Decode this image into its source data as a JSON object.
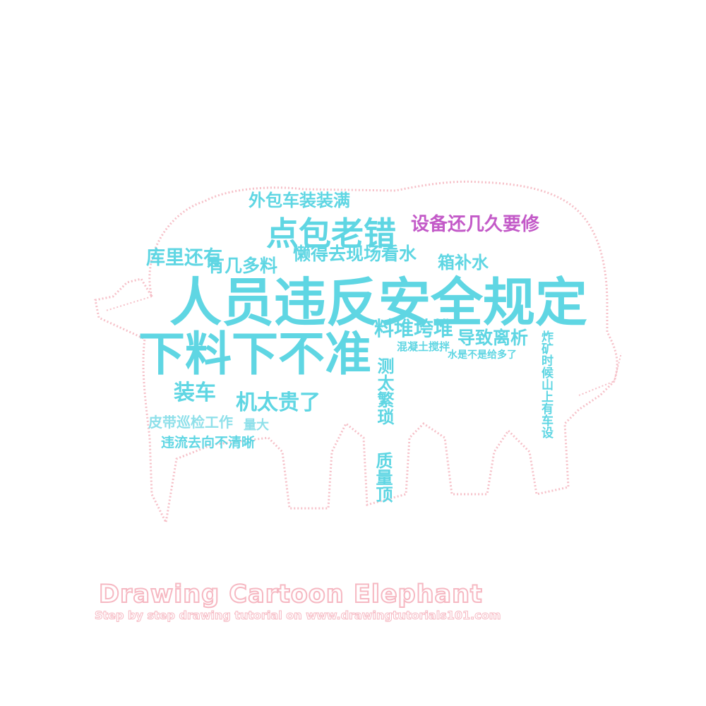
{
  "colors": {
    "cyan": "#5fd6e3",
    "cyan_light": "#8fe0ea",
    "magenta": "#c35ac8",
    "outline": "#f6c0c8"
  },
  "words": [
    "外包车装装满",
    "设备还几久要修",
    "点包老错",
    "库里还有",
    "有几多料",
    "懒得去现场看水",
    "箱补水",
    "人员违反安全规定",
    "下料下不准",
    "料堆垮堆",
    "导致离析",
    "混凝土搅拌",
    "水是不是给多了",
    "装车",
    "机太贵了",
    "皮带巡检工作",
    "量大",
    "违流去向不清晰",
    "质量顶",
    "测太繁琐",
    "炸矿时候山上有车设"
  ],
  "watermark": {
    "title": "Drawing Cartoon Elephant",
    "subtitle": "Step by step drawing tutorial on www.drawingtutorials101.com"
  }
}
